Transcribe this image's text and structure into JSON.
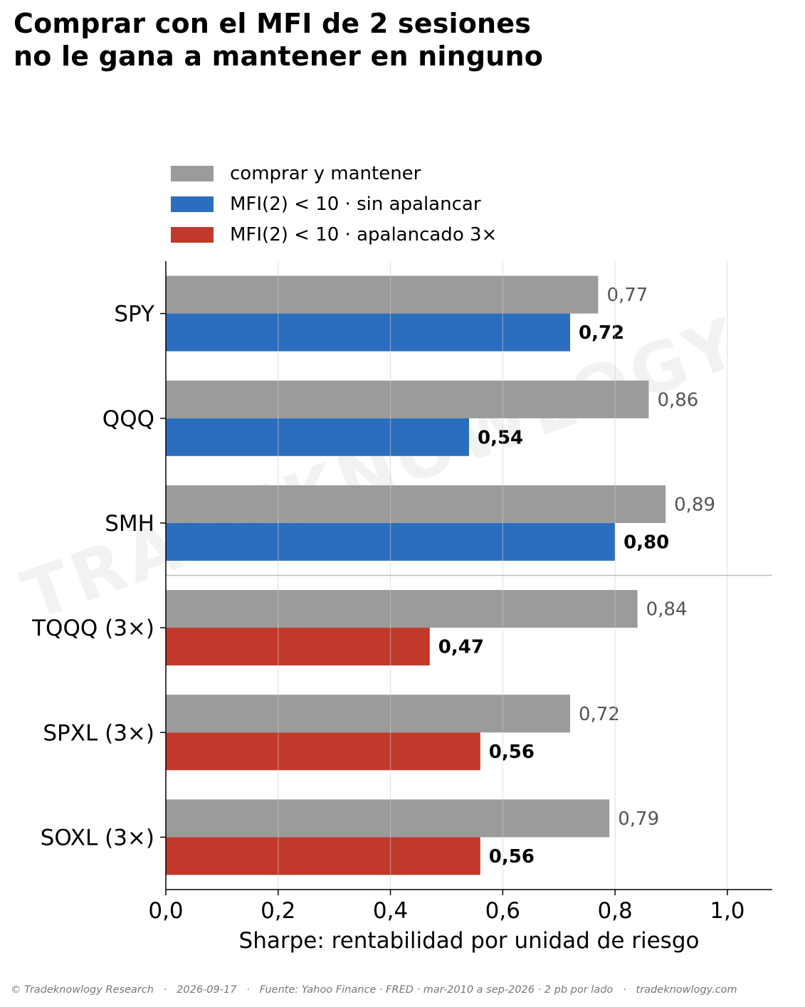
{
  "title": {
    "line1": "Comprar con el MFI de 2 sesiones",
    "line2": "no le gana a mantener en ninguno"
  },
  "legend": [
    {
      "label": "comprar y mantener",
      "color": "#9b9b9b"
    },
    {
      "label": "MFI(2) < 10 · sin apalancar",
      "color": "#2b6ebd"
    },
    {
      "label": "MFI(2) < 10 · apalancado 3×",
      "color": "#c0392b"
    }
  ],
  "watermark": "TRADEKNOWLOGY",
  "chart_data": {
    "type": "bar",
    "orientation": "horizontal",
    "categories": [
      "SPY",
      "QQQ",
      "SMH",
      "TQQQ (3×)",
      "SPXL (3×)",
      "SOXL (3×)"
    ],
    "series": [
      {
        "name": "comprar y mantener",
        "values": [
          0.77,
          0.86,
          0.89,
          0.84,
          0.72,
          0.79
        ],
        "labels": [
          "0,77",
          "0,86",
          "0,89",
          "0,84",
          "0,72",
          "0,79"
        ],
        "color": "#9b9b9b"
      },
      {
        "name": "MFI(2) < 10",
        "values": [
          0.72,
          0.54,
          0.8,
          0.47,
          0.56,
          0.56
        ],
        "labels": [
          "0,72",
          "0,54",
          "0,80",
          "0,47",
          "0,56",
          "0,56"
        ],
        "colors": [
          "#2b6ebd",
          "#2b6ebd",
          "#2b6ebd",
          "#c0392b",
          "#c0392b",
          "#c0392b"
        ]
      }
    ],
    "xlabel": "Sharpe: rentabilidad por unidad de riesgo",
    "xlim": [
      0,
      1.08
    ],
    "xticks": [
      0,
      0.2,
      0.4,
      0.6,
      0.8,
      1.0
    ],
    "xtick_labels": [
      "0,0",
      "0,2",
      "0,4",
      "0,6",
      "0,8",
      "1,0"
    ],
    "grid": "vertical",
    "legend_position": "top"
  },
  "footer": "© Tradeknowlogy Research   ·   2026-09-17   ·   Fuente: Yahoo Finance · FRED · mar-2010 a sep-2026 · 2 pb por lado   ·   tradeknowlogy.com"
}
